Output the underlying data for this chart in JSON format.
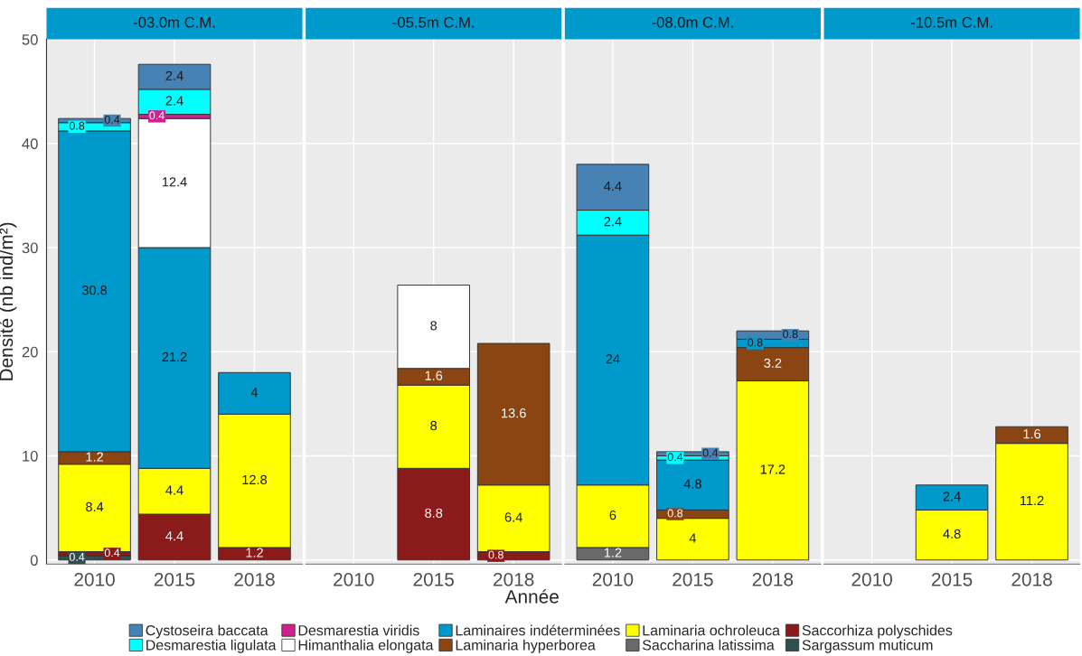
{
  "chart_data": [
    {
      "type": "bar",
      "stacked": true,
      "title": "-03.0m C.M.",
      "ylabel": "Densité (nb ind/m²)",
      "categories": [
        "2010",
        "2015",
        "2018"
      ],
      "ylim": [
        -0.4,
        50
      ],
      "yticks": [
        0,
        10,
        20,
        30,
        40,
        50
      ],
      "grid": true,
      "data_labels": true,
      "legend": "bottom",
      "series": [
        {
          "name": "Sargassum muticum",
          "color": "#2f4f4f",
          "values": [
            0.4,
            null,
            null
          ]
        },
        {
          "name": "Saccorhiza polyschides",
          "color": "#8b1a1a",
          "values": [
            0.4,
            4.4,
            1.2
          ]
        },
        {
          "name": "Saccharina latissima",
          "color": "#696969",
          "values": [
            null,
            null,
            null
          ]
        },
        {
          "name": "Laminaria ochroleuca",
          "color": "#ffff00",
          "values": [
            8.4,
            4.4,
            12.8
          ]
        },
        {
          "name": "Laminaria hyperborea",
          "color": "#8b4513",
          "values": [
            1.2,
            null,
            null
          ]
        },
        {
          "name": "Laminaires indéterminées",
          "color": "#0099cc",
          "values": [
            30.8,
            21.2,
            4
          ]
        },
        {
          "name": "Himanthalia elongata",
          "color": "#ffffff",
          "values": [
            null,
            12.4,
            null
          ]
        },
        {
          "name": "Desmarestia viridis",
          "color": "#d0208c",
          "values": [
            null,
            0.4,
            null
          ]
        },
        {
          "name": "Desmarestia ligulata",
          "color": "#00ffff",
          "values": [
            0.8,
            2.4,
            null
          ]
        },
        {
          "name": "Cystoseira baccata",
          "color": "#4682b4",
          "values": [
            0.4,
            2.4,
            null
          ]
        }
      ]
    },
    {
      "type": "bar",
      "stacked": true,
      "title": "-05.5m C.M.",
      "xlabel": "Année",
      "categories": [
        "2010",
        "2015",
        "2018"
      ],
      "ylim": [
        -0.4,
        50
      ],
      "yticks": [
        0,
        10,
        20,
        30,
        40,
        50
      ],
      "grid": true,
      "data_labels": true,
      "tick_labels": "x",
      "series": [
        {
          "color": "#2f4f4f",
          "values": [
            null,
            null,
            null
          ]
        },
        {
          "color": "#8b1a1a",
          "values": [
            null,
            8.8,
            0.8
          ]
        },
        {
          "color": "#696969",
          "values": [
            null,
            null,
            null
          ]
        },
        {
          "color": "#ffff00",
          "values": [
            null,
            8,
            6.4
          ]
        },
        {
          "color": "#8b4513",
          "values": [
            null,
            1.6,
            13.6
          ]
        },
        {
          "color": "#0099cc",
          "values": [
            null,
            null,
            null
          ]
        },
        {
          "color": "#ffffff",
          "values": [
            null,
            8,
            null
          ]
        },
        {
          "color": "#d0208c",
          "values": [
            null,
            null,
            null
          ]
        },
        {
          "color": "#00ffff",
          "values": [
            null,
            null,
            null
          ]
        },
        {
          "color": "#4682b4",
          "values": [
            null,
            null,
            null
          ]
        }
      ]
    },
    {
      "type": "bar",
      "stacked": true,
      "title": "-08.0m C.M.",
      "categories": [
        "2010",
        "2015",
        "2018"
      ],
      "ylim": [
        -0.4,
        50
      ],
      "yticks": [
        0,
        10,
        20,
        30,
        40,
        50
      ],
      "grid": true,
      "data_labels": true,
      "tick_labels": "x",
      "series": [
        {
          "color": "#2f4f4f",
          "values": [
            null,
            null,
            null
          ]
        },
        {
          "color": "#8b1a1a",
          "values": [
            null,
            null,
            null
          ]
        },
        {
          "color": "#696969",
          "values": [
            1.2,
            null,
            null
          ]
        },
        {
          "color": "#ffff00",
          "values": [
            6,
            4,
            17.2
          ]
        },
        {
          "color": "#8b4513",
          "values": [
            null,
            0.8,
            3.2
          ]
        },
        {
          "color": "#0099cc",
          "values": [
            24,
            4.8,
            0.8
          ]
        },
        {
          "color": "#ffffff",
          "values": [
            null,
            null,
            null
          ]
        },
        {
          "color": "#d0208c",
          "values": [
            null,
            null,
            null
          ]
        },
        {
          "color": "#00ffff",
          "values": [
            2.4,
            0.4,
            null
          ]
        },
        {
          "color": "#4682b4",
          "values": [
            4.4,
            0.4,
            0.8
          ]
        }
      ]
    },
    {
      "type": "bar",
      "stacked": true,
      "title": "-10.5m C.M.",
      "categories": [
        "2010",
        "2015",
        "2018"
      ],
      "ylim": [
        -0.4,
        50
      ],
      "yticks": [
        0,
        10,
        20,
        30,
        40,
        50
      ],
      "grid": true,
      "data_labels": true,
      "tick_labels": "x",
      "series": [
        {
          "color": "#2f4f4f",
          "values": [
            null,
            null,
            null
          ]
        },
        {
          "color": "#8b1a1a",
          "values": [
            null,
            null,
            null
          ]
        },
        {
          "color": "#696969",
          "values": [
            null,
            null,
            null
          ]
        },
        {
          "color": "#ffff00",
          "values": [
            null,
            4.8,
            11.2
          ]
        },
        {
          "color": "#8b4513",
          "values": [
            null,
            null,
            1.6
          ]
        },
        {
          "color": "#0099cc",
          "values": [
            null,
            2.4,
            null
          ]
        },
        {
          "color": "#ffffff",
          "values": [
            null,
            null,
            null
          ]
        },
        {
          "color": "#d0208c",
          "values": [
            null,
            null,
            null
          ]
        },
        {
          "color": "#00ffff",
          "values": [
            null,
            null,
            null
          ]
        },
        {
          "color": "#4682b4",
          "values": [
            null,
            null,
            null
          ]
        }
      ]
    }
  ]
}
